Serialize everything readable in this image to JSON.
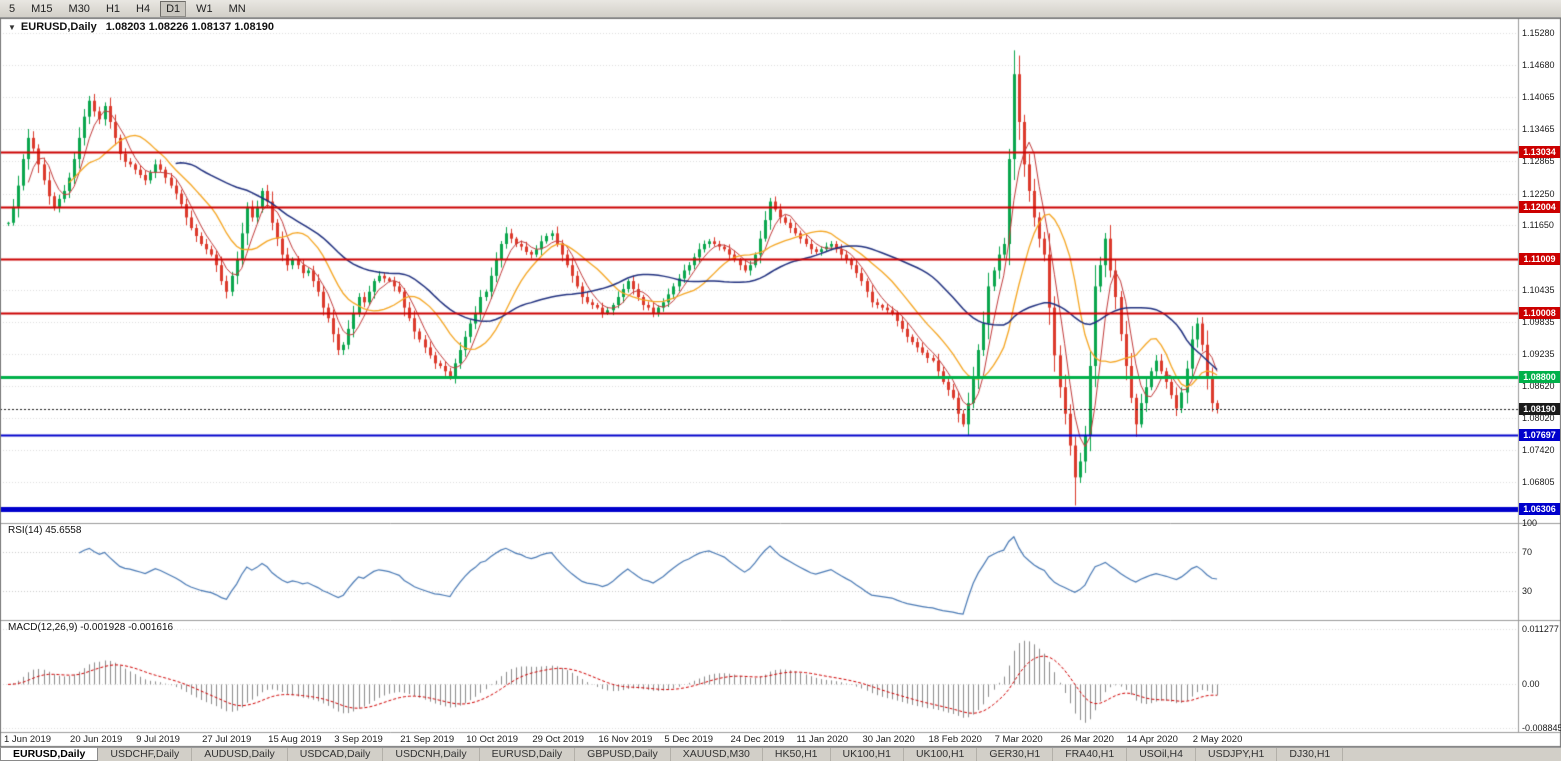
{
  "toolbar": {
    "timeframes": [
      "5",
      "M15",
      "M30",
      "H1",
      "H4",
      "D1",
      "W1",
      "MN"
    ],
    "active": "D1"
  },
  "header": {
    "symbol_timeframe": "EURUSD,Daily",
    "ohlc": "1.08203 1.08226 1.08137 1.08190",
    "collapse_glyph": "▼"
  },
  "colors": {
    "candle_up": "#0aa64d",
    "candle_up_stroke": "#0a8c41",
    "candle_down": "#dc3a2c",
    "candle_down_stroke": "#bb2a1e",
    "ma_fast": "#c23b3b",
    "ma_mid": "#f5a623",
    "ma_slow": "#20307f",
    "rsi_line": "#4a7ab5",
    "macd_bar": "#8c8c8c",
    "macd_signal": "#d00000",
    "grid": "#dcdcdc",
    "separator": "#9a9a9a",
    "level_red": "#cc0000",
    "level_green": "#00b14a",
    "level_blue": "#0000cc",
    "current_tag": "#1a1a1a"
  },
  "chart_data": {
    "type": "candlestick",
    "symbol": "EURUSD",
    "timeframe": "Daily",
    "ohlc_display": {
      "open": "1.08203",
      "high": "1.08226",
      "low": "1.08137",
      "close": "1.08190"
    },
    "x_labels": [
      "1 Jun 2019",
      "20 Jun 2019",
      "9 Jul 2019",
      "27 Jul 2019",
      "15 Aug 2019",
      "3 Sep 2019",
      "21 Sep 2019",
      "10 Oct 2019",
      "29 Oct 2019",
      "16 Nov 2019",
      "5 Dec 2019",
      "24 Dec 2019",
      "11 Jan 2020",
      "30 Jan 2020",
      "18 Feb 2020",
      "7 Mar 2020",
      "26 Mar 2020",
      "14 Apr 2020",
      "2 May 2020"
    ],
    "candles_per_label": 13,
    "closes": [
      1.117,
      1.12,
      1.124,
      1.129,
      1.133,
      1.131,
      1.128,
      1.125,
      1.122,
      1.12,
      1.1215,
      1.123,
      1.1255,
      1.129,
      1.133,
      1.137,
      1.14,
      1.138,
      1.1365,
      1.139,
      1.136,
      1.133,
      1.13,
      1.1285,
      1.128,
      1.127,
      1.126,
      1.125,
      1.1265,
      1.128,
      1.127,
      1.1255,
      1.124,
      1.1225,
      1.1205,
      1.118,
      1.116,
      1.1145,
      1.113,
      1.112,
      1.111,
      1.109,
      1.106,
      1.104,
      1.107,
      1.11,
      1.115,
      1.12,
      1.118,
      1.12,
      1.123,
      1.121,
      1.117,
      1.114,
      1.111,
      1.109,
      1.11,
      1.109,
      1.1075,
      1.108,
      1.106,
      1.104,
      1.101,
      1.099,
      1.096,
      1.093,
      1.094,
      1.097,
      1.1,
      1.103,
      1.102,
      1.104,
      1.106,
      1.107,
      1.1065,
      1.106,
      1.105,
      1.104,
      1.101,
      1.099,
      1.0965,
      1.095,
      1.0935,
      1.092,
      1.0905,
      1.09,
      1.089,
      1.088,
      1.0905,
      1.093,
      1.0955,
      1.098,
      1.1,
      1.103,
      1.104,
      1.107,
      1.11,
      1.113,
      1.115,
      1.114,
      1.113,
      1.1125,
      1.1115,
      1.111,
      1.112,
      1.1135,
      1.1145,
      1.115,
      1.113,
      1.111,
      1.109,
      1.107,
      1.105,
      1.103,
      1.102,
      1.1015,
      1.101,
      1.1,
      1.1005,
      1.1015,
      1.103,
      1.1045,
      1.106,
      1.1045,
      1.103,
      1.1015,
      1.101,
      1.1,
      1.101,
      1.102,
      1.1035,
      1.105,
      1.1065,
      1.108,
      1.109,
      1.1105,
      1.112,
      1.113,
      1.1135,
      1.113,
      1.1125,
      1.112,
      1.111,
      1.11,
      1.109,
      1.108,
      1.109,
      1.111,
      1.114,
      1.1175,
      1.121,
      1.1195,
      1.118,
      1.117,
      1.116,
      1.115,
      1.114,
      1.113,
      1.112,
      1.1115,
      1.112,
      1.1125,
      1.113,
      1.112,
      1.111,
      1.11,
      1.109,
      1.1075,
      1.106,
      1.104,
      1.102,
      1.1015,
      1.101,
      1.1005,
      1.1,
      1.0985,
      1.097,
      1.0955,
      1.0945,
      1.0935,
      1.0925,
      1.0915,
      1.091,
      1.089,
      1.087,
      1.0855,
      1.084,
      1.081,
      1.079,
      1.083,
      1.088,
      1.093,
      1.098,
      1.105,
      1.108,
      1.111,
      1.113,
      1.129,
      1.145,
      1.136,
      1.128,
      1.123,
      1.118,
      1.114,
      1.111,
      1.101,
      1.092,
      1.086,
      1.081,
      1.075,
      1.069,
      1.072,
      1.077,
      1.09,
      1.105,
      1.109,
      1.114,
      1.108,
      1.103,
      1.096,
      1.09,
      1.084,
      1.079,
      1.083,
      1.086,
      1.089,
      1.091,
      1.089,
      1.087,
      1.0845,
      1.082,
      1.085,
      1.0895,
      1.095,
      1.098,
      1.094,
      1.088,
      1.083,
      1.0819
    ],
    "wick_overrides": [
      {
        "i": 198,
        "high": 1.1495
      },
      {
        "i": 210,
        "low": 1.0637
      }
    ],
    "price_axis": {
      "min": 1.0604,
      "max": 1.1556,
      "ticks": [
        "1.15280",
        "1.14680",
        "1.14065",
        "1.13465",
        "1.12865",
        "1.12250",
        "1.11650",
        "1.10435",
        "1.09835",
        "1.09235",
        "1.08620",
        "1.08020",
        "1.07420",
        "1.06805"
      ]
    },
    "levels": [
      {
        "value": 1.13034,
        "label": "1.13034",
        "color": "#cc0000",
        "width": 2,
        "style": "solid"
      },
      {
        "value": 1.12004,
        "label": "1.12004",
        "color": "#cc0000",
        "width": 2,
        "style": "solid"
      },
      {
        "value": 1.11009,
        "label": "1.11009",
        "color": "#cc0000",
        "width": 2,
        "style": "solid"
      },
      {
        "value": 1.10008,
        "label": "1.10008",
        "color": "#cc0000",
        "width": 2,
        "style": "solid"
      },
      {
        "value": 1.088,
        "label": "1.08800",
        "color": "#00b14a",
        "width": 3,
        "style": "solid"
      },
      {
        "value": 1.0819,
        "label": "1.08190",
        "color": "#1a1a1a",
        "width": 1,
        "style": "dotted"
      },
      {
        "value": 1.07697,
        "label": "1.07697",
        "color": "#0000cc",
        "width": 2,
        "style": "solid"
      },
      {
        "value": 1.06306,
        "label": "1.06306",
        "color": "#0000cc",
        "width": 5,
        "style": "solid"
      }
    ],
    "moving_averages": [
      {
        "period": 5,
        "color": "#c23b3b",
        "width": 1
      },
      {
        "period": 13,
        "color": "#f5a623",
        "width": 1.3
      },
      {
        "period": 34,
        "color": "#20307f",
        "width": 1.5
      }
    ],
    "rsi": {
      "label": "RSI(14) 45.6558",
      "period": 14,
      "current": 45.6558,
      "levels": [
        70,
        30
      ],
      "ticks": [
        "100",
        "70",
        "30"
      ],
      "range": [
        0,
        100
      ]
    },
    "macd": {
      "label": "MACD(12,26,9) -0.001928 -0.001616",
      "fast": 12,
      "slow": 26,
      "signal": 9,
      "current_main": -0.001928,
      "current_signal": -0.001616,
      "ticks": [
        "0.011277",
        "0.00",
        "-0.008845"
      ],
      "range": [
        -0.0096,
        0.013
      ]
    }
  },
  "tabs": [
    {
      "label": "EURUSD,Daily",
      "active": true
    },
    {
      "label": "USDCHF,Daily",
      "active": false
    },
    {
      "label": "AUDUSD,Daily",
      "active": false
    },
    {
      "label": "USDCAD,Daily",
      "active": false
    },
    {
      "label": "USDCNH,Daily",
      "active": false
    },
    {
      "label": "EURUSD,Daily",
      "active": false
    },
    {
      "label": "GBPUSD,Daily",
      "active": false
    },
    {
      "label": "XAUUSD,M30",
      "active": false
    },
    {
      "label": "HK50,H1",
      "active": false
    },
    {
      "label": "UK100,H1",
      "active": false
    },
    {
      "label": "UK100,H1",
      "active": false
    },
    {
      "label": "GER30,H1",
      "active": false
    },
    {
      "label": "FRA40,H1",
      "active": false
    },
    {
      "label": "USOil,H4",
      "active": false
    },
    {
      "label": "USDJPY,H1",
      "active": false
    },
    {
      "label": "DJ30,H1",
      "active": false
    }
  ]
}
